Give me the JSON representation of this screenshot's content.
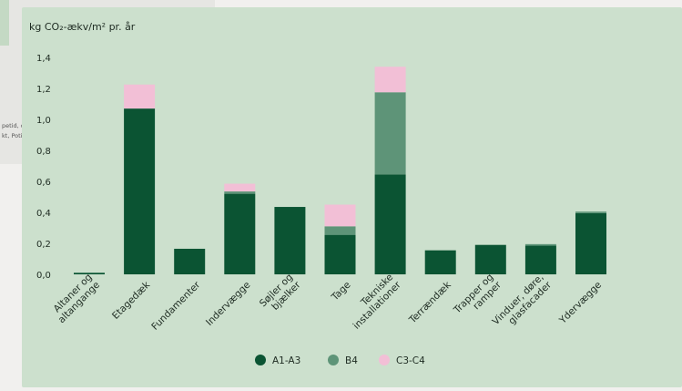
{
  "background": {
    "fragment_line_1": "petid, d",
    "fragment_line_2": "kt, Poti"
  },
  "colors": {
    "card_bg": "#cce0cd",
    "a1_a3": "#0b5433",
    "b4": "#5e9478",
    "c3_c4": "#f2bfd6",
    "text": "#1e2b22"
  },
  "chart_data": {
    "type": "bar",
    "stacked": true,
    "ylabel": "kg CO₂-ækv/m² pr. år",
    "ylim": [
      0,
      1.4
    ],
    "yticks": [
      "0,0",
      "0,2",
      "0,4",
      "0,6",
      "0,8",
      "1,0",
      "1,2",
      "1,4"
    ],
    "categories": [
      [
        "Altaner og",
        "altangange"
      ],
      [
        "Etagedæk"
      ],
      [
        "Fundamenter"
      ],
      [
        "Indervægge"
      ],
      [
        "Søjler og",
        "bjælker"
      ],
      [
        "Tage"
      ],
      [
        "Tekniske",
        "installationer"
      ],
      [
        "Terrændæk"
      ],
      [
        "Trapper og",
        "ramper"
      ],
      [
        "Vinduer, døre,",
        "glasfacader"
      ],
      [
        "Ydervægge"
      ]
    ],
    "series": [
      {
        "name": "A1-A3",
        "color": "#0b5433",
        "values": [
          0.01,
          1.07,
          0.165,
          0.52,
          0.435,
          0.255,
          0.645,
          0.155,
          0.19,
          0.185,
          0.395
        ]
      },
      {
        "name": "B4",
        "color": "#5e9478",
        "values": [
          0.0,
          0.0,
          0.0,
          0.015,
          0.0,
          0.055,
          0.53,
          0.0,
          0.0,
          0.01,
          0.01
        ]
      },
      {
        "name": "C3-C4",
        "color": "#f2bfd6",
        "values": [
          0.0,
          0.155,
          0.0,
          0.05,
          0.0,
          0.14,
          0.165,
          0.0,
          0.0,
          0.0,
          0.0
        ]
      }
    ],
    "legend_position": "bottom"
  }
}
